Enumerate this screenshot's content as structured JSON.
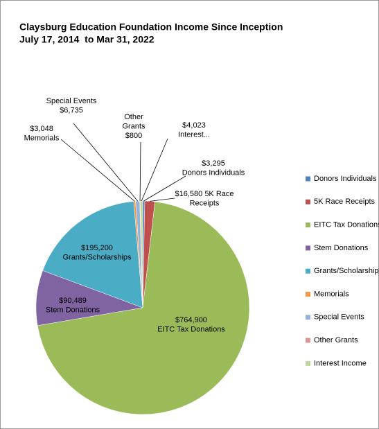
{
  "chart_data": {
    "type": "pie",
    "title": "Claysburg Education Foundation Income Since Inception",
    "subtitle": "July 17, 2014  to Mar 31, 2022",
    "categories": [
      "Donors Individuals",
      "5K Race Receipts",
      "EITC Tax Donations",
      "Stem Donations",
      "Grants/Scholarships",
      "Memorials",
      "Special Events",
      "Other Grants",
      "Interest Income"
    ],
    "values": [
      3295,
      16580,
      764900,
      90489,
      195200,
      3048,
      6735,
      800,
      4023
    ],
    "value_labels": [
      "$3,295",
      "$16,580",
      "$764,900",
      "$90,489",
      "$195,200",
      "$3,048",
      "$6,735",
      "$800",
      "$4,023"
    ],
    "label_names": [
      [
        "Donors Individuals"
      ],
      [
        "5K Race",
        "Receipts"
      ],
      [
        "EITC Tax Donations"
      ],
      [
        "Stem Donations"
      ],
      [
        "Grants/Scholarships"
      ],
      [
        "Memorials"
      ],
      [
        "Special Events"
      ],
      [
        "Other",
        "Grants"
      ],
      [
        "Interest..."
      ]
    ],
    "colors": [
      "#4f81bd",
      "#c0504d",
      "#9bbb59",
      "#8064a2",
      "#4bacc6",
      "#f79646",
      "#95b3d7",
      "#da9694",
      "#c3d69b"
    ],
    "legend": "right"
  }
}
